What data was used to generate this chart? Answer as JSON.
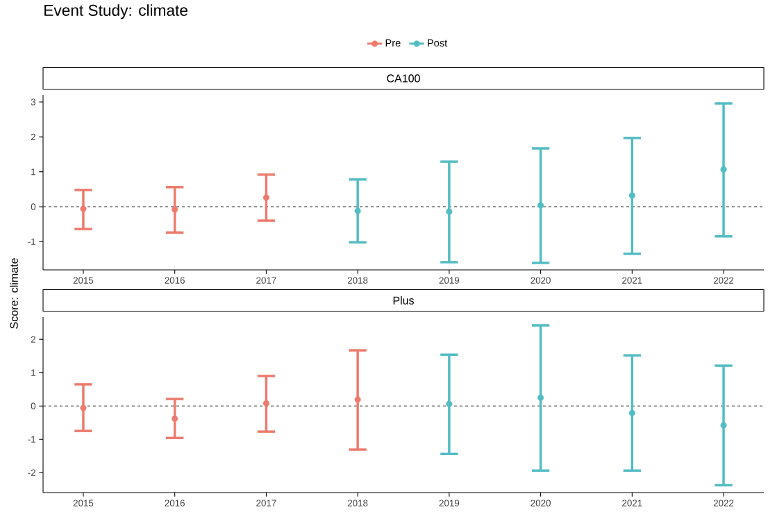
{
  "chart_data": [
    {
      "type": "scatter",
      "title": "CA100",
      "annotations": [
        "Event Study: climate"
      ],
      "ylabel": "Score: climate",
      "categories": [
        "2015",
        "2016",
        "2017",
        "2018",
        "2019",
        "2020",
        "2021",
        "2022"
      ],
      "series": [
        {
          "name": "Pre",
          "color": "#ec7b6d",
          "values": [
            -0.06,
            -0.08,
            0.26,
            null,
            null,
            null,
            null,
            null
          ],
          "errors": [
            [
              -0.64,
              0.48
            ],
            [
              -0.74,
              0.56
            ],
            [
              -0.4,
              0.92
            ],
            null,
            null,
            null,
            null,
            null
          ]
        },
        {
          "name": "Post",
          "color": "#52bcc3",
          "values": [
            null,
            null,
            null,
            -0.12,
            -0.14,
            0.04,
            0.32,
            1.07
          ],
          "errors": [
            null,
            null,
            null,
            [
              -1.02,
              0.78
            ],
            [
              -1.59,
              1.29
            ],
            [
              -1.61,
              1.67
            ],
            [
              -1.35,
              1.97
            ],
            [
              -0.85,
              2.96
            ]
          ]
        }
      ],
      "ylim": [
        -1.81,
        3.2
      ],
      "yticks": [
        -1,
        0,
        1,
        2,
        3
      ],
      "ref_lines": [
        {
          "axis": "y",
          "value": 0,
          "line_style": "dashed"
        }
      ],
      "marker": "circle",
      "grid": false,
      "legend": "top"
    },
    {
      "type": "scatter",
      "title": "Plus",
      "categories": [
        "2015",
        "2016",
        "2017",
        "2018",
        "2019",
        "2020",
        "2021",
        "2022"
      ],
      "series": [
        {
          "color": "#ec7b6d",
          "values": [
            -0.06,
            -0.38,
            0.08,
            0.19,
            null,
            null,
            null,
            null
          ],
          "errors": [
            [
              -0.75,
              0.65
            ],
            [
              -0.96,
              0.21
            ],
            [
              -0.77,
              0.9
            ],
            [
              -1.31,
              1.67
            ],
            null,
            null,
            null,
            null
          ]
        },
        {
          "color": "#52bcc3",
          "values": [
            null,
            null,
            null,
            null,
            0.06,
            0.25,
            -0.21,
            -0.58
          ],
          "errors": [
            null,
            null,
            null,
            null,
            [
              -1.44,
              1.54
            ],
            [
              -1.94,
              2.42
            ],
            [
              -1.94,
              1.52
            ],
            [
              -2.38,
              1.21
            ]
          ]
        }
      ],
      "ylim": [
        -2.6,
        2.67
      ],
      "yticks": [
        -2,
        -1,
        0,
        1,
        2
      ],
      "ref_lines": [
        {
          "axis": "y",
          "value": 0,
          "line_style": "dashed"
        }
      ],
      "marker": "circle",
      "grid": false
    }
  ]
}
